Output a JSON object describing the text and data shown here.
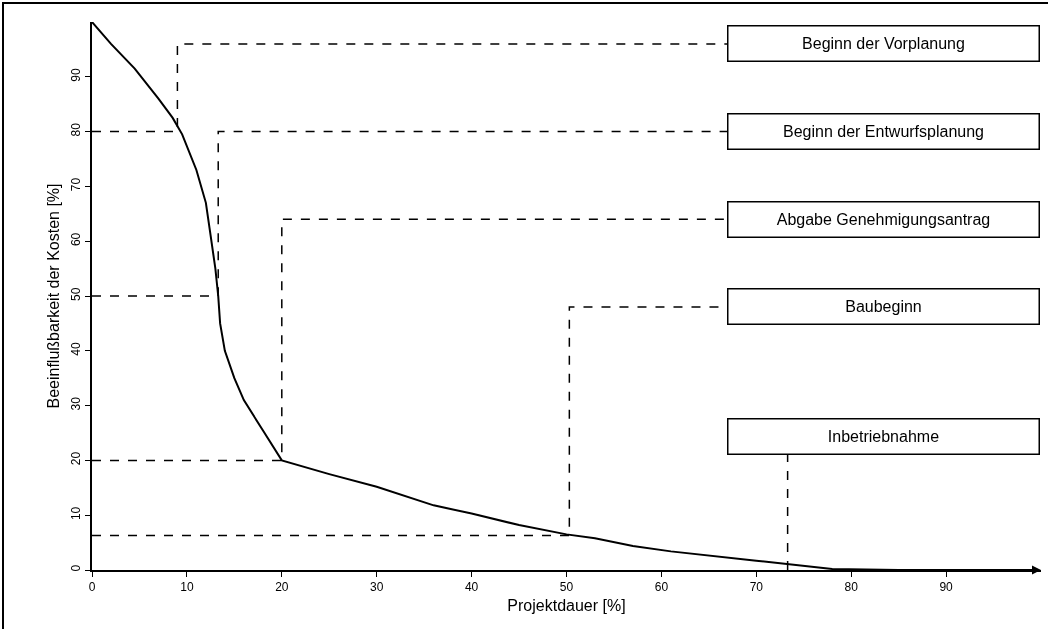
{
  "chart_data": {
    "type": "line",
    "xlabel": "Projektdauer [%]",
    "ylabel": "Beeinflußbarkeit der Kosten [%]",
    "x": [
      0,
      2,
      4.5,
      7,
      8.5,
      9.5,
      11,
      12,
      12.5,
      13,
      13.3,
      13.5,
      14,
      15,
      16,
      18,
      20,
      25,
      30,
      36,
      40,
      45,
      50,
      53,
      57,
      61,
      70,
      78,
      85,
      95,
      99.5
    ],
    "series": [
      {
        "color": "#000000",
        "values": [
          100,
          96,
          91.5,
          86,
          82.5,
          79.5,
          73,
          67,
          61,
          55,
          50,
          45,
          40,
          35,
          31,
          25.5,
          20,
          17.5,
          15.2,
          11.8,
          10.3,
          8.2,
          6.5,
          5.8,
          4.4,
          3.4,
          1.7,
          0.2,
          0,
          0,
          0
        ]
      },
      {
        "color": "#000000",
        "line_style": "dashed",
        "x": [
          0,
          9,
          9,
          67
        ],
        "values": [
          80,
          80,
          96,
          96
        ]
      },
      {
        "color": "#000000",
        "line_style": "dashed",
        "x": [
          0,
          13.3,
          13.3,
          67
        ],
        "values": [
          50,
          50,
          80,
          80
        ]
      },
      {
        "color": "#000000",
        "line_style": "dashed",
        "x": [
          0,
          20,
          20,
          67
        ],
        "values": [
          20,
          20,
          64,
          64
        ]
      },
      {
        "color": "#000000",
        "line_style": "dashed",
        "x": [
          0,
          50.3,
          50.3,
          67
        ],
        "values": [
          6.3,
          6.3,
          48,
          48
        ]
      },
      {
        "color": "#000000",
        "line_style": "dashed",
        "x": [
          73.3,
          73.3
        ],
        "values": [
          0,
          21
        ]
      }
    ],
    "xlim": [
      0,
      100
    ],
    "xticks": [
      0,
      10,
      20,
      30,
      40,
      50,
      60,
      70,
      80,
      90
    ],
    "ylim": [
      0,
      100
    ],
    "yticks": [
      0,
      10,
      20,
      30,
      40,
      50,
      60,
      70,
      80,
      90
    ],
    "grid": false,
    "marker": "none",
    "line_style": "solid",
    "annotations": [
      "Beginn der Vorplanung",
      "Beginn der Entwurfsplanung",
      "Abgabe Genehmigungsantrag",
      "Baubeginn",
      "Inbetriebnahme"
    ]
  }
}
